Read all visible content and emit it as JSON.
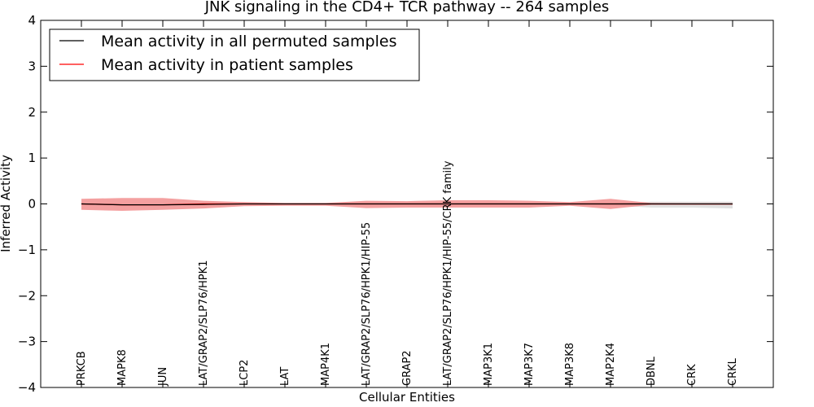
{
  "chart_data": {
    "type": "line",
    "title": "JNK signaling in the CD4+ TCR pathway -- 264 samples",
    "xlabel": "Cellular Entities",
    "ylabel": "Inferred Activity",
    "ylim": [
      -4,
      4
    ],
    "yticks": [
      4,
      3,
      2,
      1,
      0,
      -1,
      -2,
      -3,
      -4
    ],
    "ytick_labels": [
      "4",
      "3",
      "2",
      "1",
      "0",
      "−1",
      "−2",
      "−3",
      "−4"
    ],
    "categories": [
      "PRKCB",
      "MAPK8",
      "JUN",
      "LAT/GRAP2/SLP76/HPK1",
      "LCP2",
      "LAT",
      "MAP4K1",
      "LAT/GRAP2/SLP76/HPK1/HIP-55",
      "GRAP2",
      "LAT/GRAP2/SLP76/HPK1/HIP-55/CRK family",
      "MAP3K1",
      "MAP3K7",
      "MAP3K8",
      "MAP2K4",
      "DBNL",
      "CRK",
      "CRKL"
    ],
    "legend_position": "top-left",
    "grid": false,
    "series": [
      {
        "name": "Mean activity in all permuted samples",
        "color": "#000000",
        "values": [
          0.0,
          -0.02,
          -0.02,
          -0.01,
          0.0,
          0.0,
          0.0,
          0.0,
          0.0,
          0.0,
          0.0,
          0.0,
          0.0,
          0.0,
          0.0,
          0.0,
          0.0
        ],
        "band_upper": [
          0.02,
          0.01,
          0.01,
          0.01,
          0.01,
          0.01,
          0.01,
          0.01,
          0.01,
          0.01,
          0.01,
          0.01,
          0.01,
          0.01,
          0.05,
          0.05,
          0.05
        ],
        "band_lower": [
          -0.02,
          -0.03,
          -0.03,
          -0.02,
          -0.01,
          -0.01,
          -0.01,
          -0.01,
          -0.01,
          -0.01,
          -0.01,
          -0.01,
          -0.01,
          -0.03,
          -0.08,
          -0.08,
          -0.1
        ],
        "band_color": "#cccccc"
      },
      {
        "name": "Mean activity in patient samples",
        "color": "#ff0000",
        "values": [
          0.0,
          -0.02,
          -0.02,
          0.0,
          0.0,
          0.0,
          0.0,
          0.0,
          0.0,
          0.0,
          0.0,
          0.0,
          0.0,
          0.0,
          0.0,
          0.0,
          0.0
        ],
        "band_upper": [
          0.11,
          0.13,
          0.13,
          0.07,
          0.04,
          0.02,
          0.02,
          0.07,
          0.06,
          0.08,
          0.08,
          0.07,
          0.04,
          0.11,
          0.02,
          0.01,
          0.01
        ],
        "band_lower": [
          -0.13,
          -0.15,
          -0.13,
          -0.1,
          -0.05,
          -0.04,
          -0.04,
          -0.09,
          -0.08,
          -0.08,
          -0.08,
          -0.08,
          -0.04,
          -0.11,
          -0.02,
          -0.02,
          -0.02
        ],
        "band_color": "#f08080"
      }
    ]
  }
}
